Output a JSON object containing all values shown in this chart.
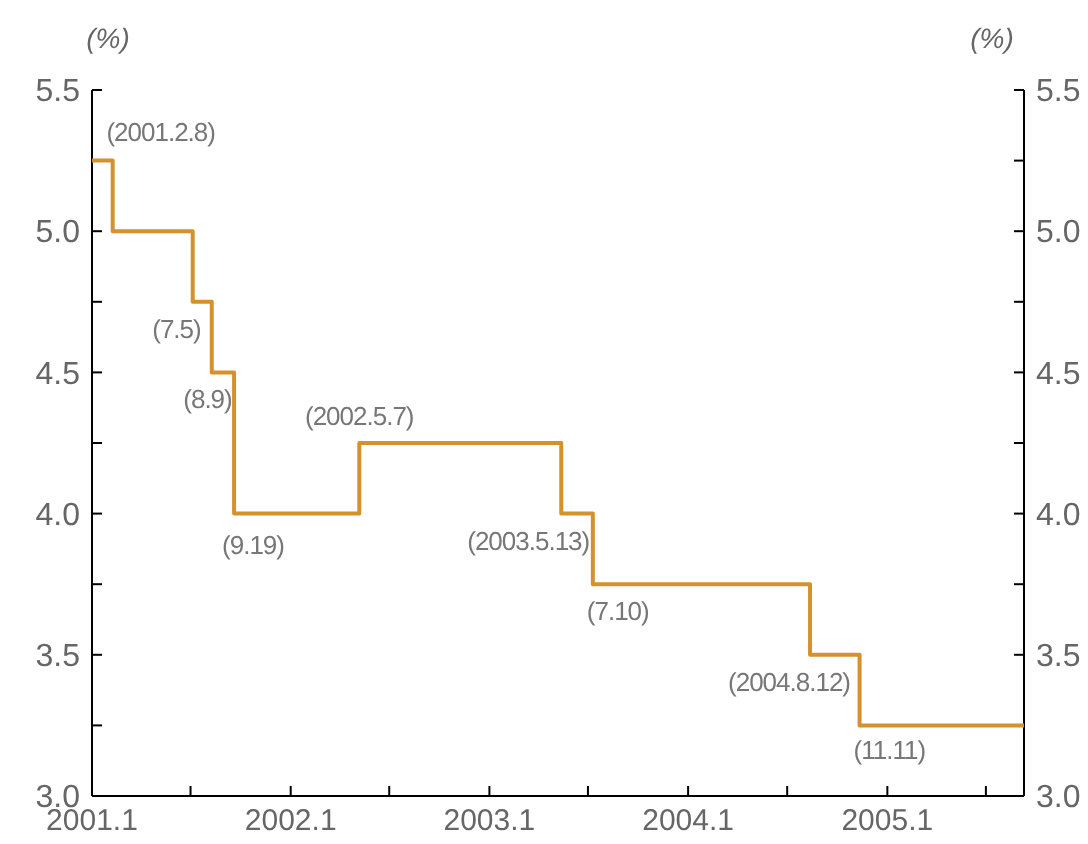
{
  "chart_data": {
    "type": "step",
    "ylabel": "(%)",
    "y2label": "(%)",
    "x": [
      "2001-01-01",
      "2001-02-08",
      "2001-07-05",
      "2001-08-09",
      "2001-09-19",
      "2002-05-07",
      "2003-05-13",
      "2003-07-10",
      "2004-08-12",
      "2004-11-11",
      "2005-09-09"
    ],
    "values": [
      5.25,
      5.0,
      4.75,
      4.5,
      4.0,
      4.25,
      4.0,
      3.75,
      3.5,
      3.25,
      3.25
    ],
    "color": "#d4912e",
    "xlim": [
      "2001-01-01",
      "2005-09-09"
    ],
    "xticks": [
      {
        "value": "2001-01-01",
        "label": "2001.1"
      },
      {
        "value": "2001-07-01",
        "label": null
      },
      {
        "value": "2002-01-01",
        "label": "2002.1"
      },
      {
        "value": "2002-07-01",
        "label": null
      },
      {
        "value": "2003-01-01",
        "label": "2003.1"
      },
      {
        "value": "2003-07-01",
        "label": null
      },
      {
        "value": "2004-01-01",
        "label": "2004.1"
      },
      {
        "value": "2004-07-01",
        "label": null
      },
      {
        "value": "2005-01-01",
        "label": "2005.1"
      },
      {
        "value": "2005-07-01",
        "label": null
      }
    ],
    "ylim": [
      3.0,
      5.5
    ],
    "yticks": [
      {
        "value": 3,
        "label": "3.0"
      },
      {
        "value": 3.25,
        "label": null
      },
      {
        "value": 3.5,
        "label": "3.5"
      },
      {
        "value": 3.75,
        "label": null
      },
      {
        "value": 4,
        "label": "4.0"
      },
      {
        "value": 4.25,
        "label": null
      },
      {
        "value": 4.5,
        "label": "4.5"
      },
      {
        "value": 4.75,
        "label": null
      },
      {
        "value": 5,
        "label": "5.0"
      },
      {
        "value": 5.25,
        "label": null
      },
      {
        "value": 5.5,
        "label": "5.5"
      }
    ],
    "y2lim": [
      3.0,
      5.5
    ],
    "y2ticks": [
      {
        "value": 3,
        "label": "3.0"
      },
      {
        "value": 3.25,
        "label": null
      },
      {
        "value": 3.5,
        "label": "3.5"
      },
      {
        "value": 3.75,
        "label": null
      },
      {
        "value": 4,
        "label": "4.0"
      },
      {
        "value": 4.25,
        "label": null
      },
      {
        "value": 4.5,
        "label": "4.5"
      },
      {
        "value": 4.75,
        "label": null
      },
      {
        "value": 5,
        "label": "5.0"
      },
      {
        "value": 5.25,
        "label": null
      },
      {
        "value": 5.5,
        "label": "5.5"
      }
    ],
    "annotations": [
      {
        "text": "(2001.2.8)",
        "x": "2001-02-08",
        "y": 5.25
      },
      {
        "text": "(7.5)",
        "x": "2001-07-05",
        "y": 4.75
      },
      {
        "text": "(8.9)",
        "x": "2001-08-09",
        "y": 4.5
      },
      {
        "text": "(9.19)",
        "x": "2001-09-19",
        "y": 4.0
      },
      {
        "text": "(2002.5.7)",
        "x": "2002-05-07",
        "y": 4.25
      },
      {
        "text": "(2003.5.13)",
        "x": "2003-05-13",
        "y": 4.0
      },
      {
        "text": "(7.10)",
        "x": "2003-07-10",
        "y": 3.75
      },
      {
        "text": "(2004.8.12)",
        "x": "2004-08-12",
        "y": 3.5
      },
      {
        "text": "(11.11)",
        "x": "2004-11-11",
        "y": 3.25
      }
    ]
  }
}
